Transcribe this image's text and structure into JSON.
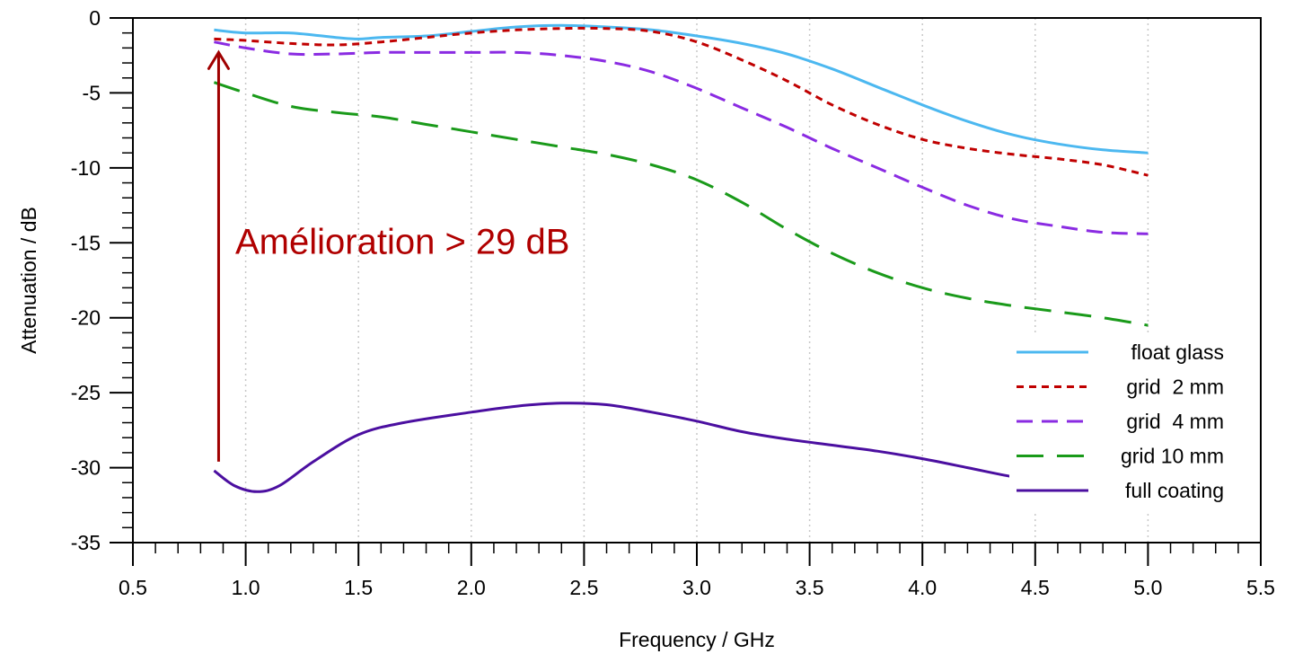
{
  "chart_data": {
    "type": "line",
    "title": "",
    "xlabel": "Frequency / GHz",
    "ylabel": "Attenuation / dB",
    "xlim": [
      0.5,
      5.5
    ],
    "ylim": [
      -35,
      0
    ],
    "x_ticks": [
      0.5,
      1.0,
      1.5,
      2.0,
      2.5,
      3.0,
      3.5,
      4.0,
      4.5,
      5.0,
      5.5
    ],
    "x_tick_labels": [
      "0.5",
      "1.0",
      "1.5",
      "2.0",
      "2.5",
      "3.0",
      "3.5",
      "4.0",
      "4.5",
      "5.0",
      "5.5"
    ],
    "y_ticks": [
      0,
      -5,
      -10,
      -15,
      -20,
      -25,
      -30,
      -35
    ],
    "y_tick_labels": [
      "0",
      "-5",
      "-10",
      "-15",
      "-20",
      "-25",
      "-30",
      "-35"
    ],
    "grid": "vertical dotted",
    "legend_position": "bottom-right",
    "series": [
      {
        "name": "float glass",
        "color": "#4cb8f0",
        "dash": "solid",
        "x": [
          0.86,
          1.0,
          1.2,
          1.4,
          1.5,
          1.6,
          1.8,
          2.0,
          2.2,
          2.4,
          2.6,
          2.8,
          3.0,
          3.2,
          3.4,
          3.6,
          3.8,
          4.0,
          4.2,
          4.4,
          4.6,
          4.8,
          5.0
        ],
        "y": [
          -0.8,
          -1.0,
          -1.0,
          -1.3,
          -1.4,
          -1.3,
          -1.2,
          -0.9,
          -0.6,
          -0.5,
          -0.6,
          -0.8,
          -1.2,
          -1.7,
          -2.4,
          -3.4,
          -4.6,
          -5.8,
          -6.9,
          -7.8,
          -8.4,
          -8.8,
          -9.0
        ]
      },
      {
        "name": "grid  2 mm",
        "color": "#c00000",
        "dash": "short-dash",
        "x": [
          0.86,
          1.0,
          1.2,
          1.4,
          1.6,
          1.8,
          2.0,
          2.2,
          2.4,
          2.6,
          2.8,
          3.0,
          3.2,
          3.4,
          3.6,
          3.8,
          4.0,
          4.2,
          4.4,
          4.6,
          4.8,
          5.0
        ],
        "y": [
          -1.4,
          -1.5,
          -1.7,
          -1.8,
          -1.6,
          -1.3,
          -1.0,
          -0.8,
          -0.7,
          -0.7,
          -0.9,
          -1.6,
          -2.8,
          -4.2,
          -5.8,
          -7.1,
          -8.1,
          -8.7,
          -9.1,
          -9.4,
          -9.8,
          -10.5
        ]
      },
      {
        "name": "grid  4 mm",
        "color": "#8a2be2",
        "dash": "medium-dash",
        "x": [
          0.86,
          1.0,
          1.2,
          1.4,
          1.6,
          1.8,
          2.0,
          2.2,
          2.4,
          2.6,
          2.8,
          3.0,
          3.2,
          3.4,
          3.6,
          3.8,
          4.0,
          4.2,
          4.4,
          4.6,
          4.8,
          5.0
        ],
        "y": [
          -1.6,
          -2.0,
          -2.4,
          -2.4,
          -2.3,
          -2.3,
          -2.3,
          -2.3,
          -2.5,
          -2.9,
          -3.6,
          -4.7,
          -6.0,
          -7.3,
          -8.7,
          -10.0,
          -11.3,
          -12.5,
          -13.4,
          -13.9,
          -14.3,
          -14.4
        ]
      },
      {
        "name": "grid 10 mm",
        "color": "#1a9a1a",
        "dash": "long-dash",
        "x": [
          0.86,
          1.0,
          1.2,
          1.4,
          1.6,
          1.8,
          2.0,
          2.2,
          2.4,
          2.6,
          2.8,
          3.0,
          3.2,
          3.4,
          3.6,
          3.8,
          4.0,
          4.2,
          4.4,
          4.6,
          4.8,
          5.0
        ],
        "y": [
          -4.3,
          -5.0,
          -5.9,
          -6.3,
          -6.6,
          -7.1,
          -7.6,
          -8.1,
          -8.6,
          -9.1,
          -9.8,
          -10.8,
          -12.3,
          -14.1,
          -15.7,
          -17.0,
          -18.0,
          -18.7,
          -19.2,
          -19.6,
          -20.0,
          -20.5
        ]
      },
      {
        "name": "full coating",
        "color": "#4b0fa0",
        "dash": "solid",
        "x": [
          0.86,
          0.95,
          1.05,
          1.15,
          1.3,
          1.5,
          1.7,
          2.0,
          2.2,
          2.4,
          2.6,
          2.8,
          3.0,
          3.2,
          3.4,
          3.6,
          3.8,
          4.0,
          4.2,
          4.4,
          4.6
        ],
        "y": [
          -30.2,
          -31.2,
          -31.6,
          -31.2,
          -29.6,
          -27.8,
          -27.0,
          -26.3,
          -25.9,
          -25.7,
          -25.8,
          -26.3,
          -26.9,
          -27.6,
          -28.1,
          -28.5,
          -28.9,
          -29.4,
          -30.0,
          -30.6,
          -31.0
        ]
      }
    ],
    "annotations": [
      {
        "text": "Amélioration > 29 dB",
        "x": 0.95,
        "y": -15,
        "color": "#b00000"
      }
    ],
    "arrow": {
      "x": 0.88,
      "y_from": -29.6,
      "y_to": -2.3,
      "color": "#a00000"
    }
  }
}
